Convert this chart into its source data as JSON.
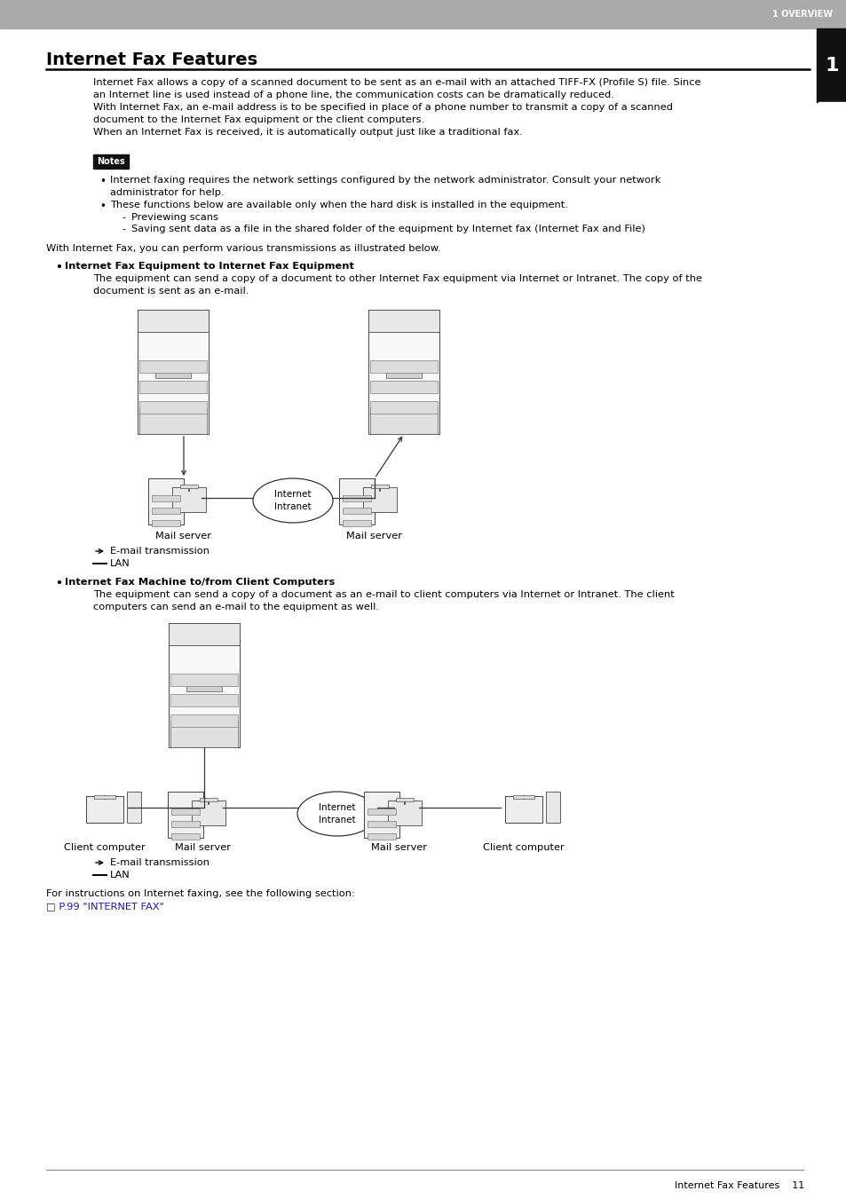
{
  "bg_color": "#ffffff",
  "header_color": "#aaaaaa",
  "header_text": "1 OVERVIEW",
  "header_text_color": "#ffffff",
  "page_number_box_color": "#111111",
  "page_number_text": "1",
  "page_number_text_color": "#ffffff",
  "title": "Internet Fax Features",
  "title_fontsize": 14,
  "separator_color": "#000000",
  "body_fontsize": 8.2,
  "small_fontsize": 7.5,
  "notes_bg": "#111111",
  "notes_text_color": "#ffffff",
  "notes_label": "Notes",
  "para1_line1": "Internet Fax allows a copy of a scanned document to be sent as an e-mail with an attached TIFF-FX (Profile S) file. Since",
  "para1_line2": "an Internet line is used instead of a phone line, the communication costs can be dramatically reduced.",
  "para1_line3": "With Internet Fax, an e-mail address is to be specified in place of a phone number to transmit a copy of a scanned",
  "para1_line4": "document to the Internet Fax equipment or the client computers.",
  "para1_line5": "When an Internet Fax is received, it is automatically output just like a traditional fax.",
  "bullet1": "Internet faxing requires the network settings configured by the network administrator. Consult your network\nadministrator for help.",
  "bullet2": "These functions below are available only when the hard disk is installed in the equipment.",
  "sub1": "Previewing scans",
  "sub2": "Saving sent data as a file in the shared folder of the equipment by Internet fax (Internet Fax and File)",
  "intro": "With Internet Fax, you can perform various transmissions as illustrated below.",
  "section1_title": "Internet Fax Equipment to Internet Fax Equipment",
  "section1_desc": "The equipment can send a copy of a document to other Internet Fax equipment via Internet or Intranet. The copy of the\ndocument is sent as an e-mail.",
  "internet_intranet": "Internet\nIntranet",
  "mail_server": "Mail server",
  "email_transmission": "E-mail transmission",
  "lan": "LAN",
  "section2_title": "Internet Fax Machine to/from Client Computers",
  "section2_desc": "The equipment can send a copy of a document as an e-mail to client computers via Internet or Intranet. The client\ncomputers can send an e-mail to the equipment as well.",
  "client_computer": "Client computer",
  "footer_text": "For instructions on Internet faxing, see the following section:",
  "footer_link": "P.99 \"INTERNET FAX\"",
  "page_footer": "Internet Fax Features    11",
  "arrow_color": "#333333",
  "line_color": "#333333",
  "device_face": "#f5f5f5",
  "device_edge": "#333333"
}
